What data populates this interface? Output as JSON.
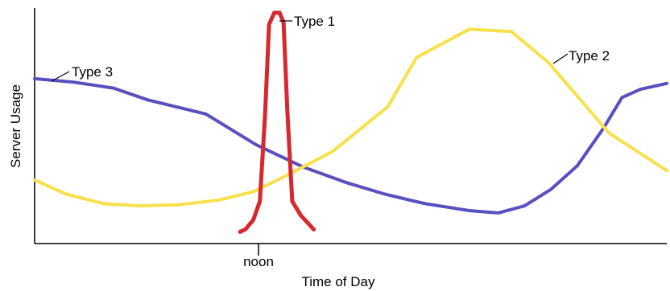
{
  "chart_data": {
    "type": "line",
    "title": "",
    "xlabel": "Time of Day",
    "ylabel": "Server Usage",
    "xlim": [
      0,
      24
    ],
    "ylim": [
      0,
      100
    ],
    "grid": false,
    "legend": "none",
    "x_ticks": [
      {
        "x": 8.5,
        "label": "noon"
      }
    ],
    "series": [
      {
        "name": "Type 1",
        "color": "#d7282f",
        "points": [
          [
            7.8,
            5
          ],
          [
            8.0,
            6
          ],
          [
            8.3,
            10
          ],
          [
            8.55,
            18
          ],
          [
            8.75,
            55
          ],
          [
            8.9,
            93
          ],
          [
            9.1,
            98
          ],
          [
            9.3,
            98
          ],
          [
            9.45,
            94
          ],
          [
            9.6,
            55
          ],
          [
            9.78,
            18
          ],
          [
            10.1,
            12
          ],
          [
            10.6,
            6
          ]
        ]
      },
      {
        "name": "Type 2",
        "color": "#f7e04b",
        "points": [
          [
            0.0,
            27
          ],
          [
            1.2,
            21
          ],
          [
            2.6,
            17
          ],
          [
            4.0,
            16
          ],
          [
            5.5,
            16.5
          ],
          [
            7.0,
            18.5
          ],
          [
            8.3,
            22
          ],
          [
            9.4,
            28
          ],
          [
            11.3,
            39
          ],
          [
            13.4,
            58
          ],
          [
            14.5,
            79
          ],
          [
            16.5,
            91
          ],
          [
            18.1,
            90
          ],
          [
            19.5,
            77
          ],
          [
            21.8,
            47
          ],
          [
            24.0,
            31
          ]
        ]
      },
      {
        "name": "Type 3",
        "color": "#5a4fbe",
        "points": [
          [
            0.0,
            70
          ],
          [
            1.5,
            68.5
          ],
          [
            3.0,
            66
          ],
          [
            4.3,
            61
          ],
          [
            6.5,
            55
          ],
          [
            8.4,
            42
          ],
          [
            10.2,
            32.5
          ],
          [
            11.8,
            26
          ],
          [
            13.3,
            21
          ],
          [
            14.8,
            17
          ],
          [
            16.5,
            14
          ],
          [
            17.6,
            13
          ],
          [
            18.6,
            16
          ],
          [
            19.6,
            23
          ],
          [
            20.6,
            33
          ],
          [
            21.6,
            49
          ],
          [
            22.3,
            62
          ],
          [
            23.0,
            65.5
          ],
          [
            24.0,
            68
          ]
        ]
      }
    ],
    "annotations": [
      {
        "text": "Type 1",
        "series": "Type 1"
      },
      {
        "text": "Type 2",
        "series": "Type 2"
      },
      {
        "text": "Type 3",
        "series": "Type 3"
      }
    ]
  }
}
